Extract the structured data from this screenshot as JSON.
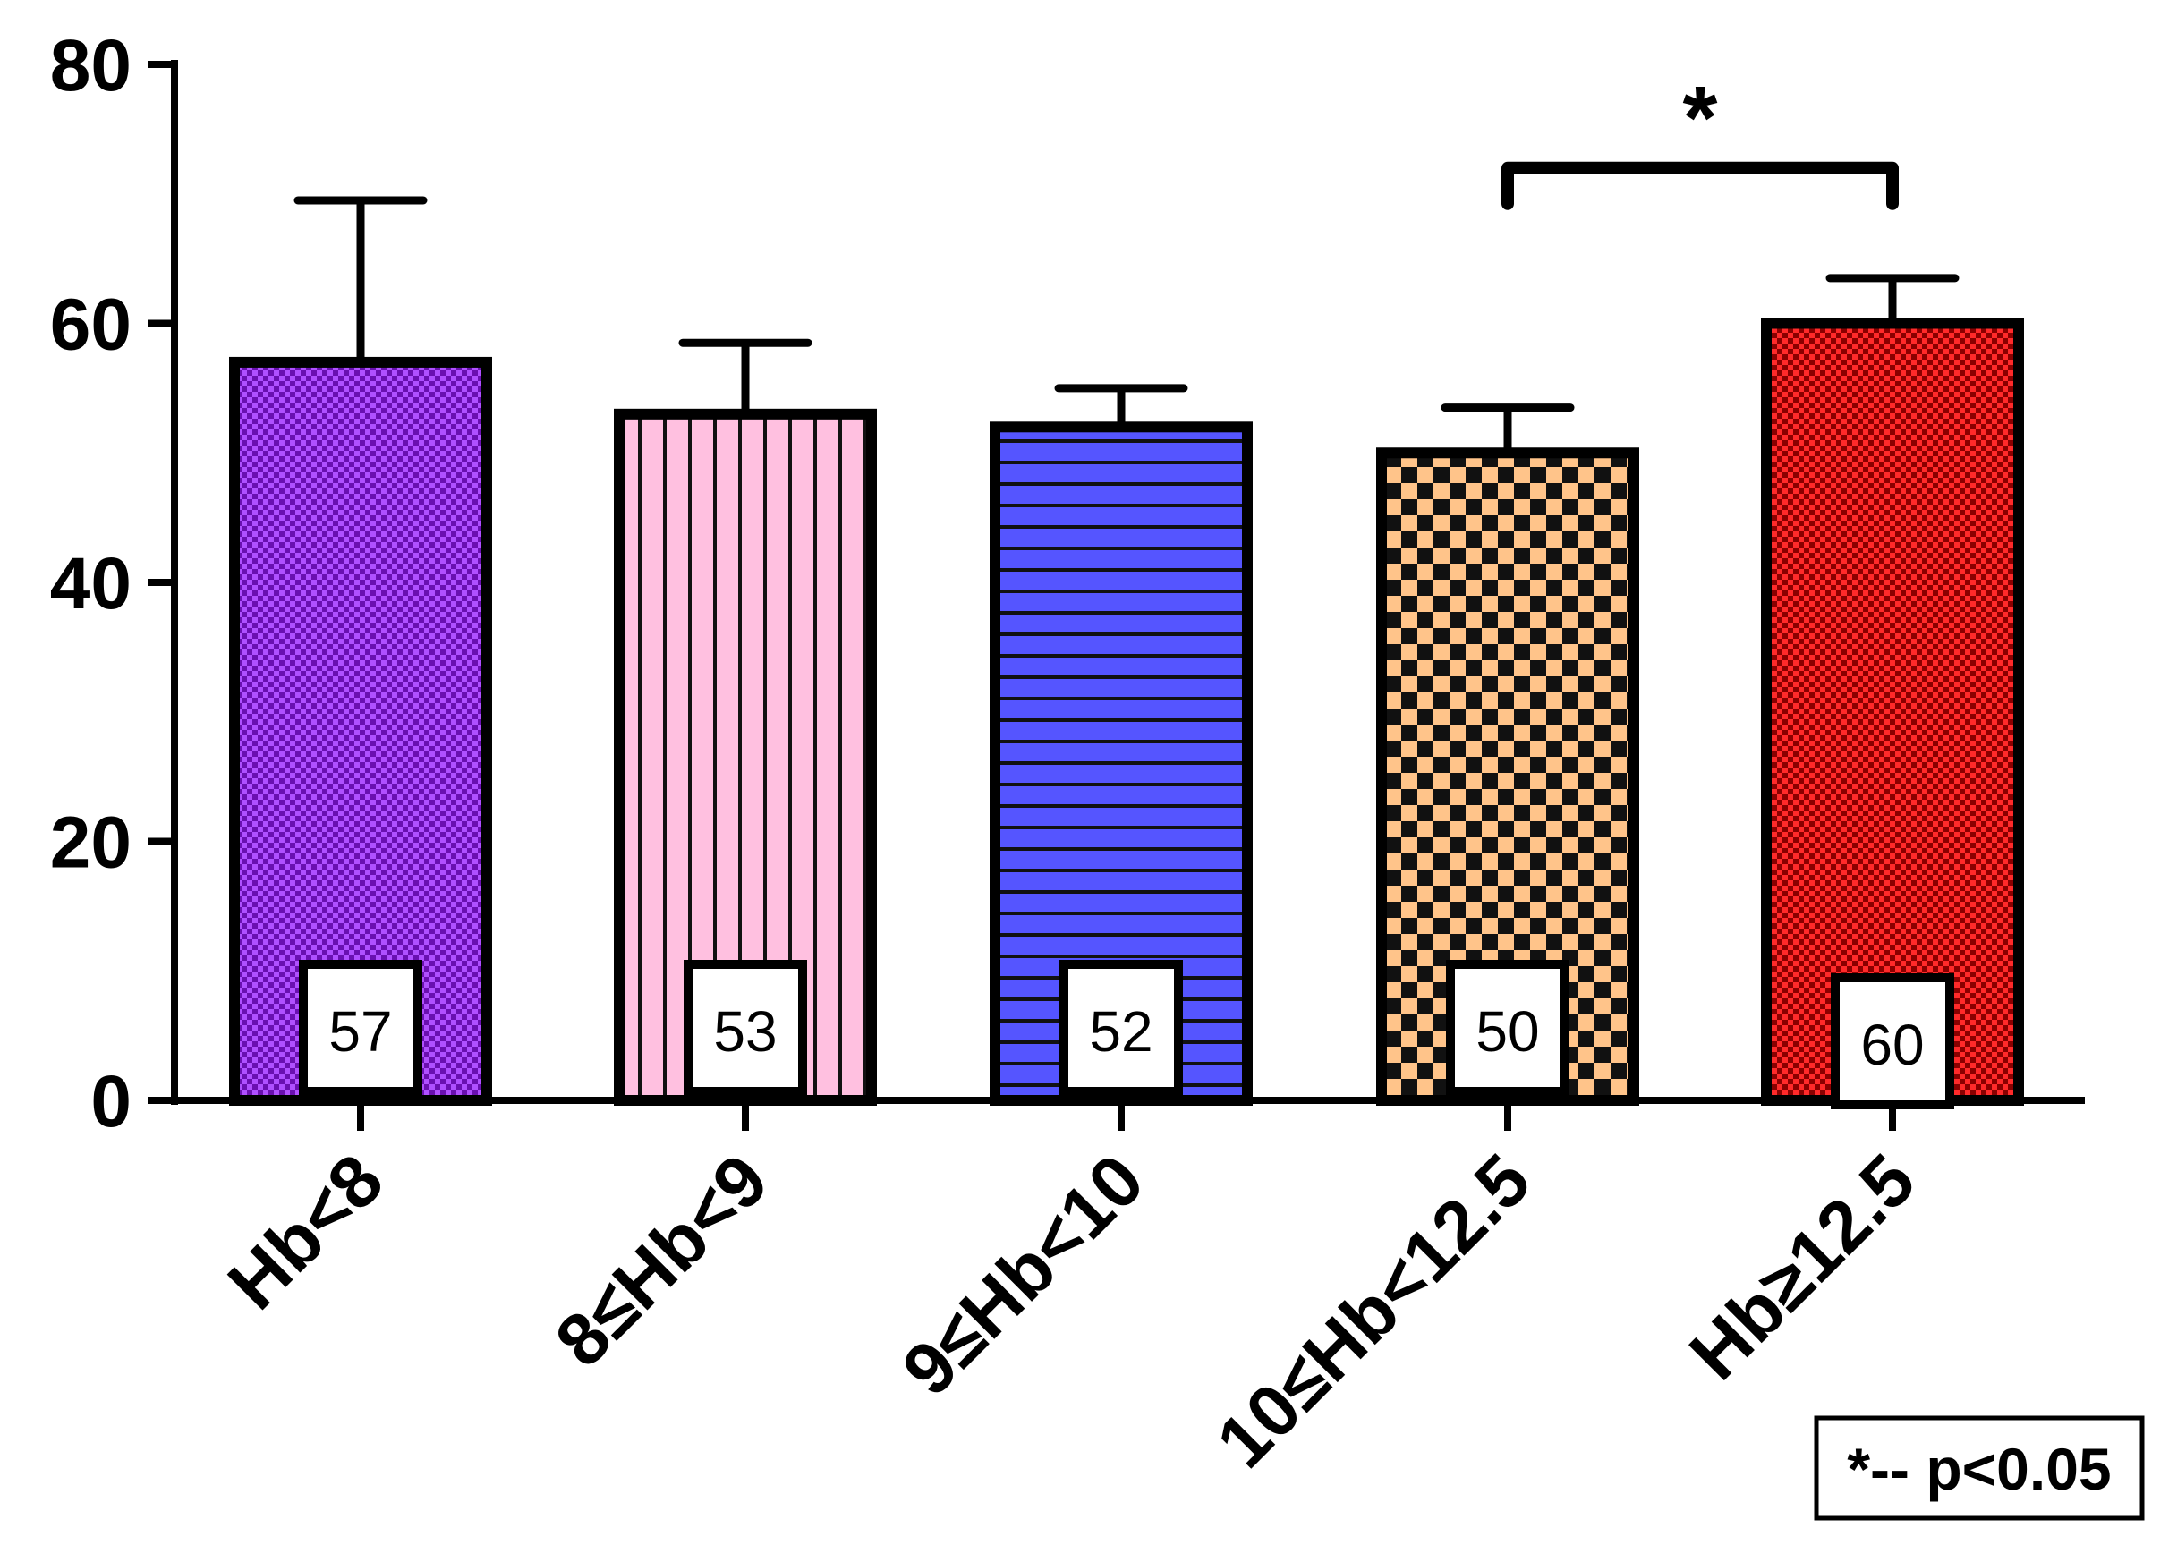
{
  "chart_data": {
    "type": "bar",
    "title": "",
    "xlabel": "",
    "ylabel": "",
    "ylim": [
      0,
      80
    ],
    "yticks": [
      "0",
      "20",
      "40",
      "60",
      "80"
    ],
    "categories": [
      "Hb<8",
      "8≤Hb<9",
      "9≤Hb<10",
      "10≤Hb<12.5",
      "Hb≥12.5"
    ],
    "values": [
      57,
      53,
      52,
      50,
      60
    ],
    "error_upper": [
      69.5,
      58.5,
      55,
      53.5,
      63.5
    ],
    "value_labels": [
      "57",
      "53",
      "52",
      "50",
      "60"
    ],
    "bar_colors": [
      "#8a1bd6",
      "#ffb9dd",
      "#5555ff",
      "#ffc48a",
      "#ee1111"
    ],
    "bar_patterns": [
      "checker-fine",
      "vertical-stripes",
      "horizontal-stripes",
      "checker-coarse",
      "checker-fine"
    ],
    "significance": {
      "from_category": 3,
      "to_category": 4,
      "bracket_y": 72,
      "marker": "*"
    },
    "legend": {
      "text": "*-- p<0.05",
      "placement": "bottom-right"
    },
    "grid": false
  }
}
